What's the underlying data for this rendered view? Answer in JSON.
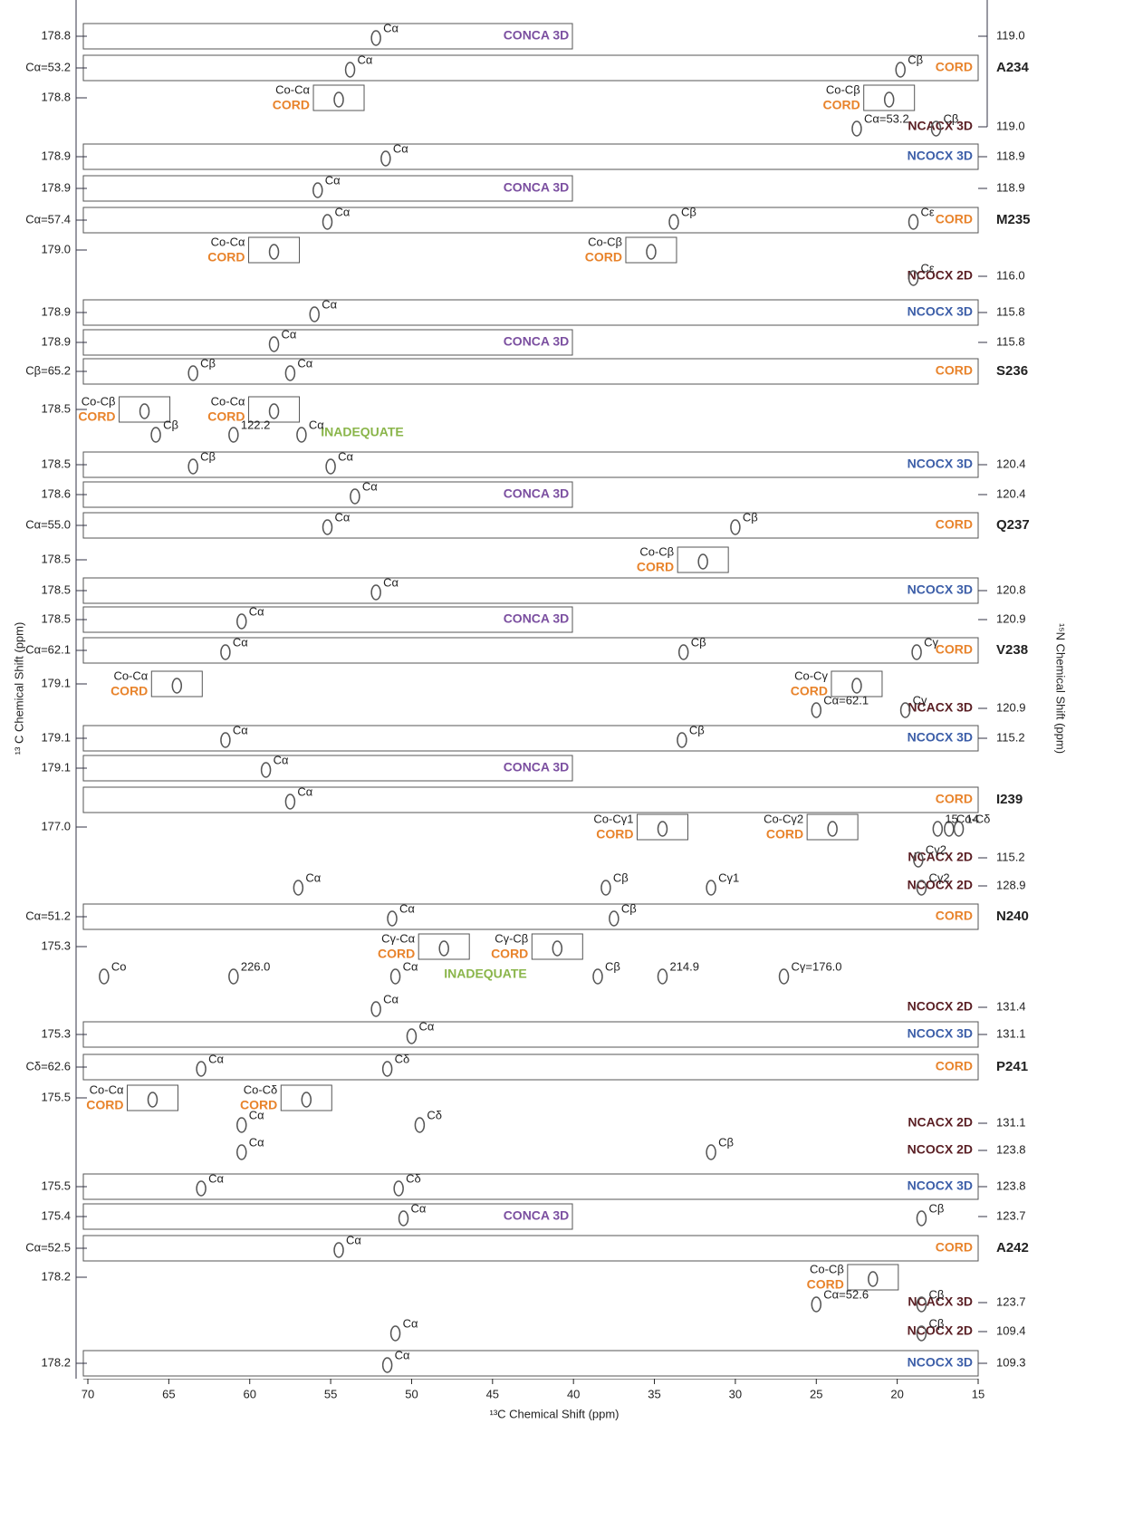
{
  "chart_data": {
    "type": "nmr-strips",
    "x_label": "¹³C Chemical Shift (ppm)",
    "y_label": "¹³ C Chemical Shift (ppm)",
    "y2_label": "¹⁵N Chemical Shift (ppm)",
    "xlim": [
      70,
      15
    ],
    "xticks": [
      70,
      65,
      60,
      55,
      50,
      45,
      40,
      35,
      30,
      25,
      20,
      15
    ],
    "peak_color": "#555555",
    "strips": [
      {
        "left": "178.8",
        "right": "119.0",
        "tag": "CONCA 3D",
        "color": "#7b4fa0",
        "peaks": [
          {
            "text": "Cα",
            "ppm": 52.2
          }
        ]
      },
      {
        "left": "Cα=53.2",
        "residue": "A234",
        "tag": "CORD",
        "color": "#e8832b",
        "peaks": [
          {
            "text": "Cα",
            "ppm": 53.8
          },
          {
            "text": "Cβ",
            "ppm": 19.8
          }
        ]
      },
      {
        "left": "178.8",
        "peaks": [
          {
            "text": "Co-Cα",
            "sub": "CORD",
            "sub_color": "#e8832b",
            "ppm": 54.5
          },
          {
            "text": "Co-Cβ",
            "sub": "CORD",
            "sub_color": "#e8832b",
            "ppm": 20.5
          }
        ]
      },
      {
        "right": "119.0",
        "tag": "NCACX 3D",
        "color": "#5a1f24",
        "peaks": [
          {
            "text": "Cα=53.2",
            "ppm": 22.5
          },
          {
            "text": "Cβ",
            "ppm": 17.6
          }
        ]
      },
      {
        "left": "178.9",
        "right": "118.9",
        "tag": "NCOCX 3D",
        "color": "#3c5ea8",
        "peaks": [
          {
            "text": "Cα",
            "ppm": 51.6
          }
        ]
      },
      {
        "left": "178.9",
        "right": "118.9",
        "tag": "CONCA 3D",
        "color": "#7b4fa0",
        "peaks": [
          {
            "text": "Cα",
            "ppm": 55.8
          }
        ]
      },
      {
        "left": "Cα=57.4",
        "residue": "M235",
        "tag": "CORD",
        "color": "#e8832b",
        "peaks": [
          {
            "text": "Cα",
            "ppm": 55.2
          },
          {
            "text": "Cβ",
            "ppm": 33.8
          },
          {
            "text": "Cε",
            "ppm": 19
          }
        ]
      },
      {
        "left": "179.0",
        "peaks": [
          {
            "text": "Co-Cα",
            "sub": "CORD",
            "sub_color": "#e8832b",
            "ppm": 58.5
          },
          {
            "text": "Co-Cβ",
            "sub": "CORD",
            "sub_color": "#e8832b",
            "ppm": 35.2
          }
        ]
      },
      {
        "right": "116.0",
        "tag": "NCOCX 2D",
        "color": "#5a1f24",
        "peaks": [
          {
            "text": "Cε",
            "ppm": 19
          }
        ]
      },
      {
        "left": "178.9",
        "right": "115.8",
        "tag": "NCOCX 3D",
        "color": "#3c5ea8",
        "peaks": [
          {
            "text": "Cα",
            "ppm": 56
          }
        ]
      },
      {
        "left": "178.9",
        "right": "115.8",
        "tag": "CONCA 3D",
        "color": "#7b4fa0",
        "peaks": [
          {
            "text": "Cα",
            "ppm": 58.5
          }
        ]
      },
      {
        "left": "Cβ=65.2",
        "residue": "S236",
        "tag": "CORD",
        "color": "#e8832b",
        "peaks": [
          {
            "text": "Cβ",
            "ppm": 63.5
          },
          {
            "text": "Cα",
            "ppm": 57.5
          }
        ]
      },
      {
        "left": "178.5",
        "peaks": [
          {
            "text": "Co-Cβ",
            "sub": "CORD",
            "sub_color": "#e8832b",
            "ppm": 66.5
          },
          {
            "text": "Co-Cα",
            "sub": "CORD",
            "sub_color": "#e8832b",
            "ppm": 58.5
          }
        ]
      },
      {
        "tag": "INADEQUATE",
        "color": "#8ab54a",
        "peaks": [
          {
            "text": "Cβ",
            "ppm": 65.8
          },
          {
            "text": "122.2",
            "ppm": 61
          },
          {
            "text": "Cα",
            "ppm": 56.8
          }
        ]
      },
      {
        "left": "178.5",
        "right": "120.4",
        "tag": "NCOCX 3D",
        "color": "#3c5ea8",
        "peaks": [
          {
            "text": "Cβ",
            "ppm": 63.5
          },
          {
            "text": "Cα",
            "ppm": 55
          }
        ]
      },
      {
        "left": "178.6",
        "right": "120.4",
        "tag": "CONCA 3D",
        "color": "#7b4fa0",
        "peaks": [
          {
            "text": "Cα",
            "ppm": 53.5
          }
        ]
      },
      {
        "left": "Cα=55.0",
        "residue": "Q237",
        "tag": "CORD",
        "color": "#e8832b",
        "peaks": [
          {
            "text": "Cα",
            "ppm": 55.2
          },
          {
            "text": "Cβ",
            "ppm": 30
          }
        ]
      },
      {
        "left": "178.5",
        "peaks": [
          {
            "text": "Co-Cβ",
            "sub": "CORD",
            "sub_color": "#e8832b",
            "ppm": 32
          }
        ]
      },
      {
        "left": "178.5",
        "right": "120.8",
        "tag": "NCOCX 3D",
        "color": "#3c5ea8",
        "peaks": [
          {
            "text": "Cα",
            "ppm": 52.2
          }
        ]
      },
      {
        "left": "178.5",
        "right": "120.9",
        "tag": "CONCA 3D",
        "color": "#7b4fa0",
        "peaks": [
          {
            "text": "Cα",
            "ppm": 60.5
          }
        ]
      },
      {
        "left": "Cα=62.1",
        "residue": "V238",
        "tag": "CORD",
        "color": "#e8832b",
        "peaks": [
          {
            "text": "Cα",
            "ppm": 61.5
          },
          {
            "text": "Cβ",
            "ppm": 33.2
          },
          {
            "text": "Cγ",
            "ppm": 18.8
          }
        ]
      },
      {
        "left": "179.1",
        "peaks": [
          {
            "text": "Co-Cα",
            "sub": "CORD",
            "sub_color": "#e8832b",
            "ppm": 64.5
          },
          {
            "text": "Co-Cγ",
            "sub": "CORD",
            "sub_color": "#e8832b",
            "ppm": 22.5
          }
        ]
      },
      {
        "right": "120.9",
        "tag": "NCACX 3D",
        "color": "#5a1f24",
        "peaks": [
          {
            "text": "Cα=62.1",
            "ppm": 25
          },
          {
            "text": "Cγ",
            "ppm": 19.5
          }
        ]
      },
      {
        "left": "179.1",
        "right": "115.2",
        "tag": "NCOCX 3D",
        "color": "#3c5ea8",
        "peaks": [
          {
            "text": "Cα",
            "ppm": 61.5
          },
          {
            "text": "Cβ",
            "ppm": 33.3
          }
        ]
      },
      {
        "left": "179.1",
        "tag": "CONCA 3D",
        "color": "#7b4fa0",
        "peaks": [
          {
            "text": "Cα",
            "ppm": 59
          }
        ]
      },
      {
        "residue": "I239",
        "tag": "CORD",
        "color": "#e8832b",
        "peaks": [
          {
            "text": "Cα",
            "ppm": 57.5
          }
        ]
      },
      {
        "left": "177.0",
        "peaks": [
          {
            "text": "Co-Cγ1",
            "sub": "CORD",
            "sub_color": "#e8832b",
            "ppm": 34.5
          },
          {
            "text": "Co-Cγ2",
            "sub": "CORD",
            "sub_color": "#e8832b",
            "ppm": 24
          },
          {
            "text": "Co-Cδ",
            "ppm": 16.8
          },
          {
            "text": "15",
            "ppm": 17.5
          },
          {
            "text": "14",
            "ppm": 16.2
          }
        ]
      },
      {
        "right": "115.2",
        "tag": "NCACX 2D",
        "color": "#5a1f24",
        "peaks": [
          {
            "text": "Cγ2",
            "ppm": 18.7
          }
        ]
      },
      {
        "right": "128.9",
        "tag": "NCOCX 2D",
        "color": "#5a1f24",
        "peaks": [
          {
            "text": "Cα",
            "ppm": 57
          },
          {
            "text": "Cβ",
            "ppm": 38
          },
          {
            "text": "Cγ1",
            "ppm": 31.5
          },
          {
            "text": "Cγ2",
            "ppm": 18.5
          }
        ]
      },
      {
        "left": "Cα=51.2",
        "residue": "N240",
        "tag": "CORD",
        "color": "#e8832b",
        "peaks": [
          {
            "text": "Cα",
            "ppm": 51.2
          },
          {
            "text": "Cβ",
            "ppm": 37.5
          }
        ]
      },
      {
        "left": "175.3",
        "peaks": [
          {
            "text": "Cγ-Cα",
            "sub": "CORD",
            "sub_color": "#e8832b",
            "ppm": 48
          },
          {
            "text": "Cγ-Cβ",
            "sub": "CORD",
            "sub_color": "#e8832b",
            "ppm": 41
          }
        ]
      },
      {
        "tag": "INADEQUATE",
        "color": "#8ab54a",
        "peaks": [
          {
            "text": "Co",
            "ppm": 69
          },
          {
            "text": "226.0",
            "ppm": 61
          },
          {
            "text": "Cα",
            "ppm": 51
          },
          {
            "text": "Cβ",
            "ppm": 38.5
          },
          {
            "text": "214.9",
            "ppm": 34.5
          },
          {
            "text": "Cγ=176.0",
            "ppm": 27
          }
        ]
      },
      {
        "right": "131.4",
        "tag": "NCOCX 2D",
        "color": "#5a1f24",
        "peaks": [
          {
            "text": "Cα",
            "ppm": 52.2
          }
        ]
      },
      {
        "left": "175.3",
        "right": "131.1",
        "tag": "NCOCX 3D",
        "color": "#3c5ea8",
        "peaks": [
          {
            "text": "Cα",
            "ppm": 50
          }
        ]
      },
      {
        "left": "Cδ=62.6",
        "residue": "P241",
        "tag": "CORD",
        "color": "#e8832b",
        "peaks": [
          {
            "text": "Cα",
            "ppm": 63
          },
          {
            "text": "Cδ",
            "ppm": 51.5
          }
        ]
      },
      {
        "left": "175.5",
        "peaks": [
          {
            "text": "Co-Cα",
            "sub": "CORD",
            "sub_color": "#e8832b",
            "ppm": 66
          },
          {
            "text": "Co-Cδ",
            "sub": "CORD",
            "sub_color": "#e8832b",
            "ppm": 56.5
          }
        ]
      },
      {
        "right": "131.1",
        "tag": "NCACX 2D",
        "color": "#5a1f24",
        "peaks": [
          {
            "text": "Cα",
            "ppm": 60.5
          },
          {
            "text": "Cδ",
            "ppm": 49.5
          }
        ]
      },
      {
        "right": "123.8",
        "tag": "NCOCX 2D",
        "color": "#5a1f24",
        "peaks": [
          {
            "text": "Cα",
            "ppm": 60.5
          },
          {
            "text": "Cβ",
            "ppm": 31.5
          }
        ]
      },
      {
        "left": "175.5",
        "right": "123.8",
        "tag": "NCOCX 3D",
        "color": "#3c5ea8",
        "peaks": [
          {
            "text": "Cα",
            "ppm": 63
          },
          {
            "text": "Cδ",
            "ppm": 50.8
          }
        ]
      },
      {
        "left": "175.4",
        "right": "123.7",
        "tag": "CONCA 3D",
        "color": "#7b4fa0",
        "peaks": [
          {
            "text": "Cα",
            "ppm": 50.5
          },
          {
            "text": "Cβ",
            "ppm": 18.5
          }
        ]
      },
      {
        "left": "Cα=52.5",
        "residue": "A242",
        "tag": "CORD",
        "color": "#e8832b",
        "peaks": [
          {
            "text": "Cα",
            "ppm": 54.5
          }
        ]
      },
      {
        "left": "178.2",
        "peaks": [
          {
            "text": "Co-Cβ",
            "sub": "CORD",
            "sub_color": "#e8832b",
            "ppm": 21.5
          }
        ]
      },
      {
        "right": "123.7",
        "tag": "NCACX 3D",
        "color": "#5a1f24",
        "peaks": [
          {
            "text": "Cα=52.6",
            "ppm": 25
          },
          {
            "text": "Cβ",
            "ppm": 18.5
          }
        ]
      },
      {
        "right": "109.4",
        "tag": "NCOCX 2D",
        "color": "#5a1f24",
        "peaks": [
          {
            "text": "Cα",
            "ppm": 51
          },
          {
            "text": "Cβ",
            "ppm": 18.5
          }
        ]
      },
      {
        "left": "178.2",
        "right": "109.3",
        "tag": "NCOCX 3D",
        "color": "#3c5ea8",
        "peaks": [
          {
            "text": "Cα",
            "ppm": 51.5
          }
        ]
      }
    ]
  }
}
